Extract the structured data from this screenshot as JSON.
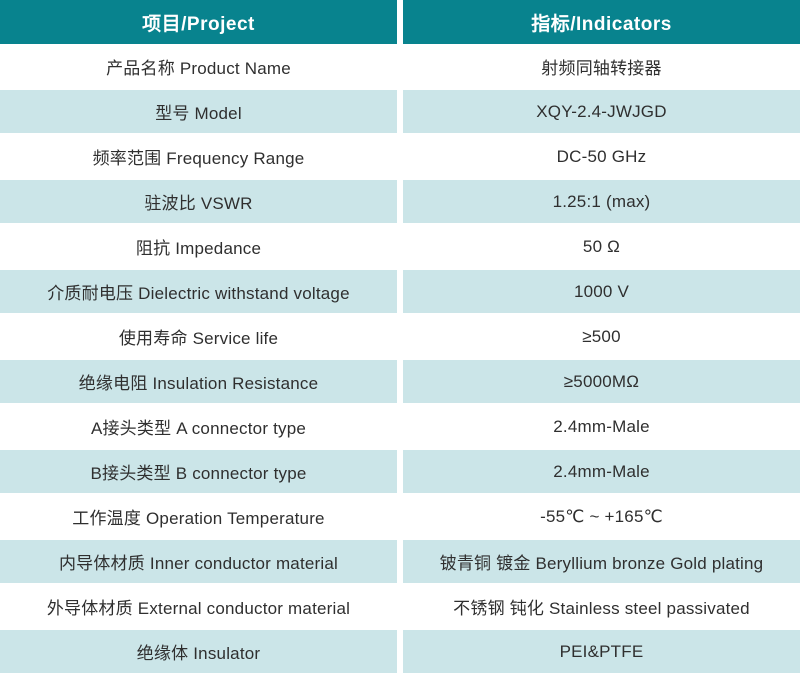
{
  "table": {
    "header": {
      "project": "项目/Project",
      "indicators": "指标/Indicators"
    },
    "rows": [
      {
        "project": "产品名称 Product Name",
        "indicator": "射频同轴转接器"
      },
      {
        "project": "型号 Model",
        "indicator": "XQY-2.4-JWJGD"
      },
      {
        "project": "频率范围 Frequency Range",
        "indicator": "DC-50 GHz"
      },
      {
        "project": "驻波比 VSWR",
        "indicator": "1.25:1 (max)"
      },
      {
        "project": "阻抗 Impedance",
        "indicator": "50 Ω"
      },
      {
        "project": "介质耐电压 Dielectric withstand voltage",
        "indicator": "1000 V"
      },
      {
        "project": "使用寿命 Service life",
        "indicator": "≥500"
      },
      {
        "project": "绝缘电阻 Insulation Resistance",
        "indicator": "≥5000MΩ"
      },
      {
        "project": "A接头类型 A connector type",
        "indicator": "2.4mm-Male"
      },
      {
        "project": "B接头类型 B connector type",
        "indicator": "2.4mm-Male"
      },
      {
        "project": "工作温度 Operation Temperature",
        "indicator": "-55℃ ~ +165℃"
      },
      {
        "project": "内导体材质 Inner conductor material",
        "indicator": "铍青铜 镀金 Beryllium bronze Gold plating"
      },
      {
        "project": "外导体材质 External conductor material",
        "indicator": "不锈钢 钝化 Stainless steel passivated"
      },
      {
        "project": "绝缘体 Insulator",
        "indicator": "PEI&PTFE"
      }
    ],
    "colors": {
      "header_bg": "#08838e",
      "header_text": "#ffffff",
      "row_bg": "#ffffff",
      "row_alt_bg": "#cbe5e8",
      "body_text": "#2f2f2f"
    }
  }
}
